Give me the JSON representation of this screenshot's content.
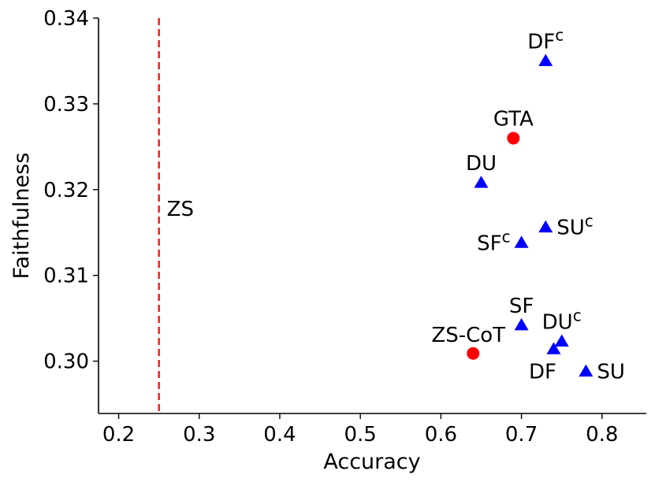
{
  "chart_data": {
    "type": "scatter",
    "xlabel": "Accuracy",
    "ylabel": "Faithfulness",
    "xlim": [
      0.175,
      0.855
    ],
    "ylim": [
      0.2939,
      0.34
    ],
    "x_ticks": [
      "0.2",
      "0.3",
      "0.4",
      "0.5",
      "0.6",
      "0.7",
      "0.8"
    ],
    "x_tick_values": [
      0.2,
      0.3,
      0.4,
      0.5,
      0.6,
      0.7,
      0.8
    ],
    "y_ticks": [
      "0.30",
      "0.31",
      "0.32",
      "0.33",
      "0.34"
    ],
    "y_tick_values": [
      0.3,
      0.31,
      0.32,
      0.33,
      0.34
    ],
    "grid": false,
    "colors": {
      "circle": "#ff0000",
      "triangle": "#0000ff",
      "baseline": "#ff0000"
    },
    "baseline": {
      "label": "ZS",
      "x": 0.25,
      "style": "dashed vertical line"
    },
    "points": [
      {
        "label": "DF",
        "sup": "c",
        "x": 0.73,
        "y": 0.335,
        "marker": "triangle",
        "label_pos": "above"
      },
      {
        "label": "GTA",
        "sup": "",
        "x": 0.69,
        "y": 0.326,
        "marker": "circle",
        "label_pos": "above"
      },
      {
        "label": "DU",
        "sup": "",
        "x": 0.65,
        "y": 0.3208,
        "marker": "triangle",
        "label_pos": "above"
      },
      {
        "label": "SU",
        "sup": "c",
        "x": 0.73,
        "y": 0.3156,
        "marker": "triangle",
        "label_pos": "right"
      },
      {
        "label": "SF",
        "sup": "c",
        "x": 0.7,
        "y": 0.3138,
        "marker": "triangle",
        "label_pos": "left"
      },
      {
        "label": "SF",
        "sup": "",
        "x": 0.7,
        "y": 0.3042,
        "marker": "triangle",
        "label_pos": "above"
      },
      {
        "label": "DU",
        "sup": "c",
        "x": 0.75,
        "y": 0.3023,
        "marker": "triangle",
        "label_pos": "above"
      },
      {
        "label": "ZS-CoT",
        "sup": "",
        "x": 0.64,
        "y": 0.3009,
        "marker": "circle",
        "label_pos": "above-left"
      },
      {
        "label": "DF",
        "sup": "",
        "x": 0.74,
        "y": 0.3014,
        "marker": "triangle",
        "label_pos": "below-left"
      },
      {
        "label": "SU",
        "sup": "",
        "x": 0.78,
        "y": 0.2988,
        "marker": "triangle",
        "label_pos": "right"
      }
    ]
  }
}
